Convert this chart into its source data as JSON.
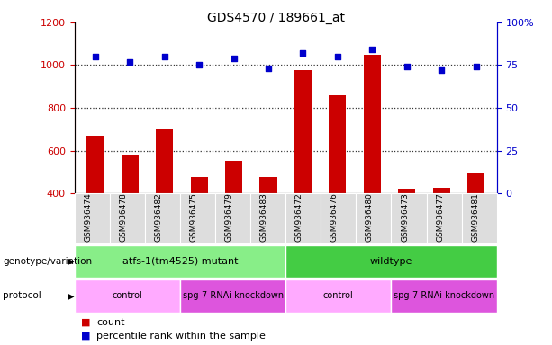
{
  "title": "GDS4570 / 189661_at",
  "samples": [
    "GSM936474",
    "GSM936478",
    "GSM936482",
    "GSM936475",
    "GSM936479",
    "GSM936483",
    "GSM936472",
    "GSM936476",
    "GSM936480",
    "GSM936473",
    "GSM936477",
    "GSM936481"
  ],
  "counts": [
    670,
    575,
    700,
    475,
    550,
    475,
    975,
    860,
    1050,
    420,
    425,
    495
  ],
  "percentile_ranks": [
    80,
    77,
    80,
    75,
    79,
    73,
    82,
    80,
    84,
    74,
    72,
    74
  ],
  "ylim_left": [
    400,
    1200
  ],
  "ylim_right": [
    0,
    100
  ],
  "yticks_left": [
    400,
    600,
    800,
    1000,
    1200
  ],
  "yticks_right": [
    0,
    25,
    50,
    75,
    100
  ],
  "bar_color": "#cc0000",
  "dot_color": "#0000cc",
  "dot_size": 25,
  "genotype_groups": [
    {
      "label": "atfs-1(tm4525) mutant",
      "start": 0,
      "end": 6,
      "color": "#88ee88"
    },
    {
      "label": "wildtype",
      "start": 6,
      "end": 12,
      "color": "#44cc44"
    }
  ],
  "protocol_groups": [
    {
      "label": "control",
      "start": 0,
      "end": 3,
      "color": "#ffaaff"
    },
    {
      "label": "spg-7 RNAi knockdown",
      "start": 3,
      "end": 6,
      "color": "#dd55dd"
    },
    {
      "label": "control",
      "start": 6,
      "end": 9,
      "color": "#ffaaff"
    },
    {
      "label": "spg-7 RNAi knockdown",
      "start": 9,
      "end": 12,
      "color": "#dd55dd"
    }
  ],
  "legend_items": [
    {
      "label": "count",
      "color": "#cc0000"
    },
    {
      "label": "percentile rank within the sample",
      "color": "#0000cc"
    }
  ],
  "gridline_vals": [
    600,
    800,
    1000
  ],
  "gridline_color": "#333333",
  "background_color": "#ffffff",
  "left_axis_color": "#cc0000",
  "right_axis_color": "#0000cc",
  "xticklabel_bg": "#dddddd",
  "bar_width": 0.5
}
